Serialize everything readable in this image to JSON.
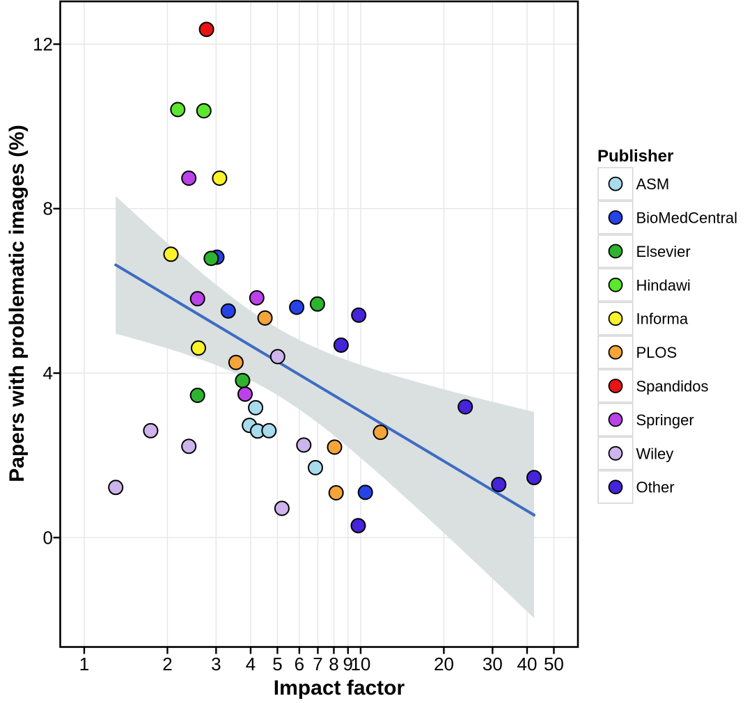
{
  "figure": {
    "background": "#ffffff",
    "kind": "scientific-scatter-plot"
  },
  "chart_data": {
    "type": "scatter",
    "title": "",
    "xlabel": "Impact factor",
    "ylabel": "Papers with problematic images (%)",
    "x_scale": "log10",
    "xlim": [
      0.819,
      61.1
    ],
    "ylim": [
      -2.66,
      13.04
    ],
    "x_ticks": [
      1,
      2,
      3,
      4,
      5,
      6,
      7,
      8,
      9,
      10,
      20,
      30,
      40,
      50
    ],
    "y_ticks": [
      0,
      4,
      8,
      12
    ],
    "grid": "on",
    "grid_color": "#e7e7e7",
    "panel_border_color": "#000000",
    "marker_edge_color": "#000000",
    "legend_position": "right",
    "legend_title": "Publisher",
    "series": [
      {
        "name": "ASM",
        "color": "#a8dcec",
        "points": [
          [
            4.17,
            3.16
          ],
          [
            3.96,
            2.73
          ],
          [
            4.24,
            2.59
          ],
          [
            4.66,
            2.6
          ],
          [
            6.86,
            1.7
          ]
        ]
      },
      {
        "name": "BioMedCentral",
        "color": "#2543e6",
        "points": [
          [
            3.02,
            6.82
          ],
          [
            3.32,
            5.51
          ],
          [
            5.87,
            5.6
          ],
          [
            10.4,
            1.1
          ]
        ]
      },
      {
        "name": "Elsevier",
        "color": "#2eb32e",
        "points": [
          [
            2.88,
            6.79
          ],
          [
            6.98,
            5.68
          ],
          [
            3.74,
            3.82
          ],
          [
            2.57,
            3.46
          ]
        ]
      },
      {
        "name": "Hindawi",
        "color": "#5ce62e",
        "points": [
          [
            2.18,
            10.41
          ],
          [
            2.71,
            10.38
          ]
        ]
      },
      {
        "name": "Informa",
        "color": "#fcf32a",
        "points": [
          [
            3.09,
            8.74
          ],
          [
            2.06,
            6.89
          ],
          [
            2.59,
            4.61
          ]
        ]
      },
      {
        "name": "PLOS",
        "color": "#f5a43a",
        "points": [
          [
            4.51,
            5.34
          ],
          [
            3.54,
            4.26
          ],
          [
            8.05,
            2.2
          ],
          [
            11.8,
            2.56
          ],
          [
            8.15,
            1.09
          ]
        ]
      },
      {
        "name": "Spandidos",
        "color": "#e81414",
        "points": [
          [
            2.77,
            12.36
          ]
        ]
      },
      {
        "name": "Springer",
        "color": "#bb42e8",
        "points": [
          [
            2.39,
            8.74
          ],
          [
            2.57,
            5.81
          ],
          [
            4.21,
            5.83
          ],
          [
            3.82,
            3.49
          ]
        ]
      },
      {
        "name": "Wiley",
        "color": "#cdb4ec",
        "points": [
          [
            5.01,
            4.4
          ],
          [
            1.74,
            2.6
          ],
          [
            2.39,
            2.22
          ],
          [
            6.23,
            2.25
          ],
          [
            1.3,
            1.22
          ],
          [
            5.19,
            0.71
          ]
        ]
      },
      {
        "name": "Other",
        "color": "#4524d9",
        "points": [
          [
            9.84,
            5.41
          ],
          [
            8.5,
            4.68
          ],
          [
            23.9,
            3.18
          ],
          [
            31.6,
            1.29
          ],
          [
            42.4,
            1.46
          ],
          [
            9.8,
            0.29
          ]
        ]
      }
    ],
    "trend": {
      "model": "linear regression of y on log10(x)",
      "intercept_pct": 7.09,
      "slope_pct_per_decade": -4.02,
      "x_range": [
        1.3,
        42.4
      ],
      "line_color": "#3e6cc4",
      "band_color": "#dae0e0",
      "ci_halfwidth_model": {
        "base": 0.665,
        "curvature": 6.41,
        "center_log10x": 0.691
      }
    }
  }
}
